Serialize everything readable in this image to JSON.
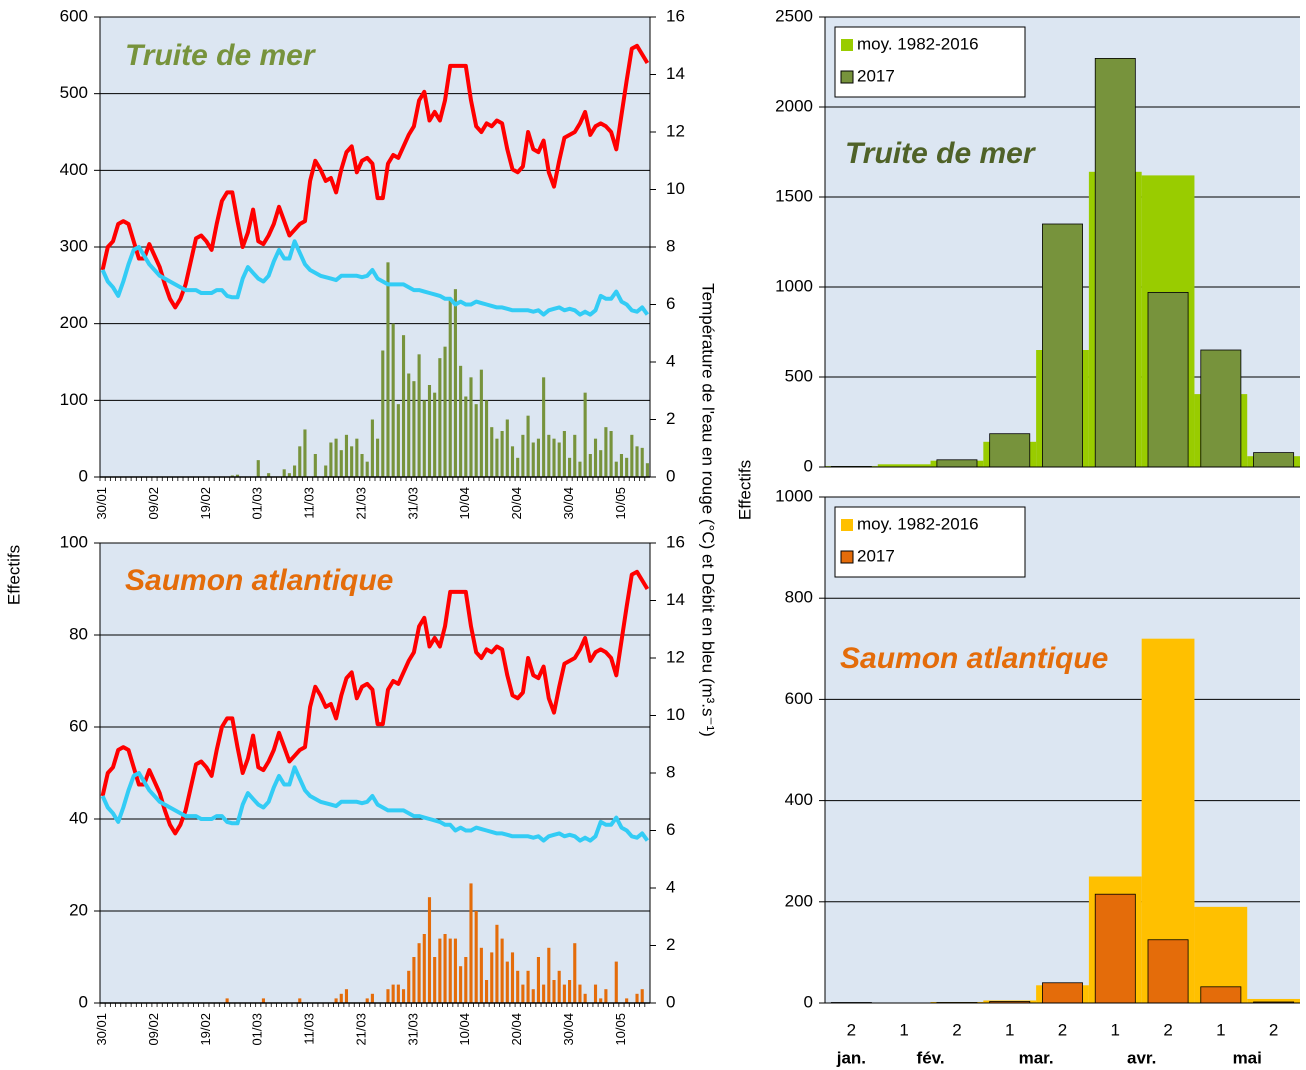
{
  "chart_data": [
    {
      "type": "combo",
      "title": "Truite de mer",
      "title_color": "#77933c",
      "y_label": "Effectifs",
      "y2_label": "Température de l'eau  en rouge (°C) et Débit en bleu (m³.s⁻¹)",
      "categories": [
        "30/01",
        null,
        null,
        null,
        null,
        null,
        null,
        null,
        null,
        null,
        "09/02",
        null,
        null,
        null,
        null,
        null,
        null,
        null,
        null,
        null,
        "19/02",
        null,
        null,
        null,
        null,
        null,
        null,
        null,
        null,
        null,
        "01/03",
        null,
        null,
        null,
        null,
        null,
        null,
        null,
        null,
        null,
        "11/03",
        null,
        null,
        null,
        null,
        null,
        null,
        null,
        null,
        null,
        "21/03",
        null,
        null,
        null,
        null,
        null,
        null,
        null,
        null,
        null,
        "31/03",
        null,
        null,
        null,
        null,
        null,
        null,
        null,
        null,
        null,
        "10/04",
        null,
        null,
        null,
        null,
        null,
        null,
        null,
        null,
        null,
        "20/04",
        null,
        null,
        null,
        null,
        null,
        null,
        null,
        null,
        null,
        "30/04",
        null,
        null,
        null,
        null,
        null,
        null,
        null,
        null,
        null,
        "10/05",
        null,
        null,
        null,
        null,
        null
      ],
      "ylim": [
        0,
        600
      ],
      "yticks": [
        0,
        100,
        200,
        300,
        400,
        500,
        600
      ],
      "y2lim": [
        0,
        16
      ],
      "y2ticks": [
        0,
        2,
        4,
        6,
        8,
        10,
        12,
        14,
        16
      ],
      "grid": true,
      "series": [
        {
          "type": "bar",
          "color": "#77933c",
          "values": [
            0,
            0,
            0,
            0,
            0,
            0,
            0,
            0,
            0,
            0,
            0,
            0,
            0,
            0,
            0,
            0,
            0,
            0,
            0,
            0,
            0,
            0,
            0,
            0,
            0,
            2,
            3,
            0,
            0,
            0,
            22,
            0,
            5,
            0,
            0,
            10,
            5,
            15,
            40,
            62,
            0,
            30,
            0,
            15,
            45,
            50,
            35,
            55,
            40,
            50,
            30,
            20,
            75,
            50,
            165,
            280,
            200,
            95,
            185,
            135,
            125,
            160,
            100,
            120,
            110,
            155,
            170,
            230,
            245,
            145,
            105,
            130,
            95,
            140,
            100,
            65,
            50,
            60,
            75,
            40,
            25,
            55,
            80,
            45,
            50,
            130,
            55,
            50,
            45,
            60,
            25,
            55,
            20,
            110,
            30,
            50,
            35,
            65,
            60,
            20,
            30,
            25,
            55,
            40,
            38,
            18
          ]
        },
        {
          "type": "line",
          "axis": "y2",
          "color": "#ff0000",
          "values": [
            7.2,
            8.0,
            8.2,
            8.8,
            8.9,
            8.8,
            8.2,
            7.6,
            7.6,
            8.1,
            7.7,
            7.3,
            6.7,
            6.2,
            5.9,
            6.2,
            6.7,
            7.5,
            8.3,
            8.4,
            8.2,
            7.9,
            8.8,
            9.6,
            9.9,
            9.9,
            8.9,
            8.0,
            8.5,
            9.3,
            8.2,
            8.1,
            8.4,
            8.8,
            9.4,
            8.9,
            8.4,
            8.6,
            8.8,
            8.9,
            10.3,
            11.0,
            10.7,
            10.3,
            10.4,
            9.9,
            10.7,
            11.3,
            11.5,
            10.6,
            11.0,
            11.1,
            10.9,
            9.7,
            9.7,
            10.9,
            11.2,
            11.1,
            11.5,
            11.9,
            12.2,
            13.1,
            13.4,
            12.4,
            12.7,
            12.4,
            13.1,
            14.3,
            14.3,
            14.3,
            14.3,
            13.1,
            12.2,
            12.0,
            12.3,
            12.2,
            12.4,
            12.3,
            11.4,
            10.7,
            10.6,
            10.8,
            12.0,
            11.4,
            11.3,
            11.7,
            10.6,
            10.1,
            11.0,
            11.8,
            11.9,
            12.0,
            12.3,
            12.7,
            11.9,
            12.2,
            12.3,
            12.2,
            12.0,
            11.4,
            12.6,
            13.8,
            14.9,
            15.0,
            14.7,
            14.4
          ]
        },
        {
          "type": "line",
          "axis": "y2",
          "color": "#33ccf5",
          "values": [
            7.2,
            6.8,
            6.6,
            6.3,
            6.8,
            7.4,
            7.9,
            8.0,
            7.7,
            7.4,
            7.2,
            7.0,
            6.9,
            6.8,
            6.7,
            6.6,
            6.5,
            6.5,
            6.5,
            6.4,
            6.4,
            6.4,
            6.5,
            6.5,
            6.3,
            6.25,
            6.25,
            6.9,
            7.3,
            7.1,
            6.9,
            6.8,
            7.0,
            7.5,
            7.9,
            7.6,
            7.6,
            8.2,
            7.8,
            7.4,
            7.2,
            7.1,
            7.0,
            6.95,
            6.9,
            6.85,
            7.0,
            7.0,
            7.0,
            7.0,
            6.95,
            7.0,
            7.2,
            6.9,
            6.8,
            6.7,
            6.7,
            6.7,
            6.7,
            6.6,
            6.5,
            6.5,
            6.45,
            6.4,
            6.35,
            6.3,
            6.2,
            6.2,
            6.0,
            6.1,
            6.0,
            6.0,
            6.1,
            6.05,
            6.0,
            5.95,
            5.9,
            5.9,
            5.85,
            5.8,
            5.8,
            5.8,
            5.8,
            5.75,
            5.8,
            5.65,
            5.8,
            5.85,
            5.9,
            5.8,
            5.85,
            5.8,
            5.65,
            5.75,
            5.65,
            5.8,
            6.3,
            6.2,
            6.2,
            6.45,
            6.1,
            6.0,
            5.8,
            5.75,
            5.9,
            5.65
          ]
        }
      ]
    },
    {
      "type": "combo",
      "title": "Saumon atlantique",
      "title_color": "#e46c0a",
      "categories": [
        "30/01",
        null,
        null,
        null,
        null,
        null,
        null,
        null,
        null,
        null,
        "09/02",
        null,
        null,
        null,
        null,
        null,
        null,
        null,
        null,
        null,
        "19/02",
        null,
        null,
        null,
        null,
        null,
        null,
        null,
        null,
        null,
        "01/03",
        null,
        null,
        null,
        null,
        null,
        null,
        null,
        null,
        null,
        "11/03",
        null,
        null,
        null,
        null,
        null,
        null,
        null,
        null,
        null,
        "21/03",
        null,
        null,
        null,
        null,
        null,
        null,
        null,
        null,
        null,
        "31/03",
        null,
        null,
        null,
        null,
        null,
        null,
        null,
        null,
        null,
        "10/04",
        null,
        null,
        null,
        null,
        null,
        null,
        null,
        null,
        null,
        "20/04",
        null,
        null,
        null,
        null,
        null,
        null,
        null,
        null,
        null,
        "30/04",
        null,
        null,
        null,
        null,
        null,
        null,
        null,
        null,
        null,
        "10/05",
        null,
        null,
        null,
        null,
        null
      ],
      "ylim": [
        0,
        100
      ],
      "yticks": [
        0,
        20,
        40,
        60,
        80,
        100
      ],
      "y2lim": [
        0,
        16
      ],
      "y2ticks": [
        0,
        2,
        4,
        6,
        8,
        10,
        12,
        14,
        16
      ],
      "grid": true,
      "series": [
        {
          "type": "bar",
          "color": "#e46c0a",
          "values": [
            0,
            0,
            0,
            0,
            0,
            0,
            0,
            0,
            0,
            0,
            0,
            0,
            0,
            0,
            0,
            0,
            0,
            0,
            0,
            0,
            0,
            0,
            0,
            0,
            1,
            0,
            0,
            0,
            0,
            0,
            0,
            1,
            0,
            0,
            0,
            0,
            0,
            0,
            1,
            0,
            0,
            0,
            0,
            0,
            0,
            1,
            2,
            3,
            0,
            0,
            0,
            1,
            2,
            0,
            0,
            3,
            4,
            4,
            3,
            7,
            10,
            13,
            15,
            23,
            10,
            14,
            15,
            14,
            14,
            8,
            10,
            26,
            20,
            12,
            5,
            11,
            17,
            14,
            9,
            11,
            7,
            4,
            7,
            3,
            10,
            4,
            12,
            5,
            7,
            4,
            5,
            13,
            4,
            2,
            0,
            4,
            1,
            3,
            0,
            9,
            0,
            1,
            0,
            2,
            3,
            0
          ]
        },
        {
          "type": "line",
          "axis": "y2",
          "color": "#ff0000",
          "values": [
            7.2,
            8.0,
            8.2,
            8.8,
            8.9,
            8.8,
            8.2,
            7.6,
            7.6,
            8.1,
            7.7,
            7.3,
            6.7,
            6.2,
            5.9,
            6.2,
            6.7,
            7.5,
            8.3,
            8.4,
            8.2,
            7.9,
            8.8,
            9.6,
            9.9,
            9.9,
            8.9,
            8.0,
            8.5,
            9.3,
            8.2,
            8.1,
            8.4,
            8.8,
            9.4,
            8.9,
            8.4,
            8.6,
            8.8,
            8.9,
            10.3,
            11.0,
            10.7,
            10.3,
            10.4,
            9.9,
            10.7,
            11.3,
            11.5,
            10.6,
            11.0,
            11.1,
            10.9,
            9.7,
            9.7,
            10.9,
            11.2,
            11.1,
            11.5,
            11.9,
            12.2,
            13.1,
            13.4,
            12.4,
            12.7,
            12.4,
            13.1,
            14.3,
            14.3,
            14.3,
            14.3,
            13.1,
            12.2,
            12.0,
            12.3,
            12.2,
            12.4,
            12.3,
            11.4,
            10.7,
            10.6,
            10.8,
            12.0,
            11.4,
            11.3,
            11.7,
            10.6,
            10.1,
            11.0,
            11.8,
            11.9,
            12.0,
            12.3,
            12.7,
            11.9,
            12.2,
            12.3,
            12.2,
            12.0,
            11.4,
            12.6,
            13.8,
            14.9,
            15.0,
            14.7,
            14.4
          ]
        },
        {
          "type": "line",
          "axis": "y2",
          "color": "#33ccf5",
          "values": [
            7.2,
            6.8,
            6.6,
            6.3,
            6.8,
            7.4,
            7.9,
            8.0,
            7.7,
            7.4,
            7.2,
            7.0,
            6.9,
            6.8,
            6.7,
            6.6,
            6.5,
            6.5,
            6.5,
            6.4,
            6.4,
            6.4,
            6.5,
            6.5,
            6.3,
            6.25,
            6.25,
            6.9,
            7.3,
            7.1,
            6.9,
            6.8,
            7.0,
            7.5,
            7.9,
            7.6,
            7.6,
            8.2,
            7.8,
            7.4,
            7.2,
            7.1,
            7.0,
            6.95,
            6.9,
            6.85,
            7.0,
            7.0,
            7.0,
            7.0,
            6.95,
            7.0,
            7.2,
            6.9,
            6.8,
            6.7,
            6.7,
            6.7,
            6.7,
            6.6,
            6.5,
            6.5,
            6.45,
            6.4,
            6.35,
            6.3,
            6.2,
            6.2,
            6.0,
            6.1,
            6.0,
            6.0,
            6.1,
            6.05,
            6.0,
            5.95,
            5.9,
            5.9,
            5.85,
            5.8,
            5.8,
            5.8,
            5.8,
            5.75,
            5.8,
            5.65,
            5.8,
            5.85,
            5.9,
            5.8,
            5.85,
            5.8,
            5.65,
            5.75,
            5.65,
            5.8,
            6.3,
            6.2,
            6.2,
            6.45,
            6.1,
            6.0,
            5.8,
            5.75,
            5.9,
            5.65
          ]
        }
      ]
    },
    {
      "type": "bar",
      "title": "Truite de mer",
      "title_color": "#4f6228",
      "y_label": "Effectifs",
      "ylim": [
        0,
        2500
      ],
      "yticks": [
        0,
        500,
        1000,
        1500,
        2000,
        2500
      ],
      "grid": true,
      "series": [
        {
          "name": "moy. 1982-2016",
          "color": "#99cc00",
          "values": [
            5,
            15,
            35,
            140,
            650,
            1640,
            1620,
            405,
            60
          ]
        },
        {
          "name": "2017",
          "color": "#77933c",
          "values": [
            3,
            0,
            40,
            185,
            1350,
            2270,
            970,
            650,
            80
          ]
        }
      ]
    },
    {
      "type": "bar",
      "title": "Saumon atlantique",
      "title_color": "#e46c0a",
      "categories": [
        "2",
        "1",
        "2",
        "1",
        "2",
        "1",
        "2",
        "1",
        "2"
      ],
      "groups": [
        "jan.",
        "fév.",
        "mar.",
        "avr.",
        "mai"
      ],
      "ylim": [
        0,
        1000
      ],
      "yticks": [
        0,
        200,
        400,
        600,
        800,
        1000
      ],
      "grid": true,
      "series": [
        {
          "name": "moy. 1982-2016",
          "color": "#ffc000",
          "values": [
            1,
            1,
            2,
            5,
            35,
            250,
            720,
            190,
            8
          ]
        },
        {
          "name": "2017",
          "color": "#e46c0a",
          "values": [
            1,
            0,
            1,
            3,
            40,
            215,
            125,
            32,
            2
          ]
        }
      ]
    }
  ]
}
